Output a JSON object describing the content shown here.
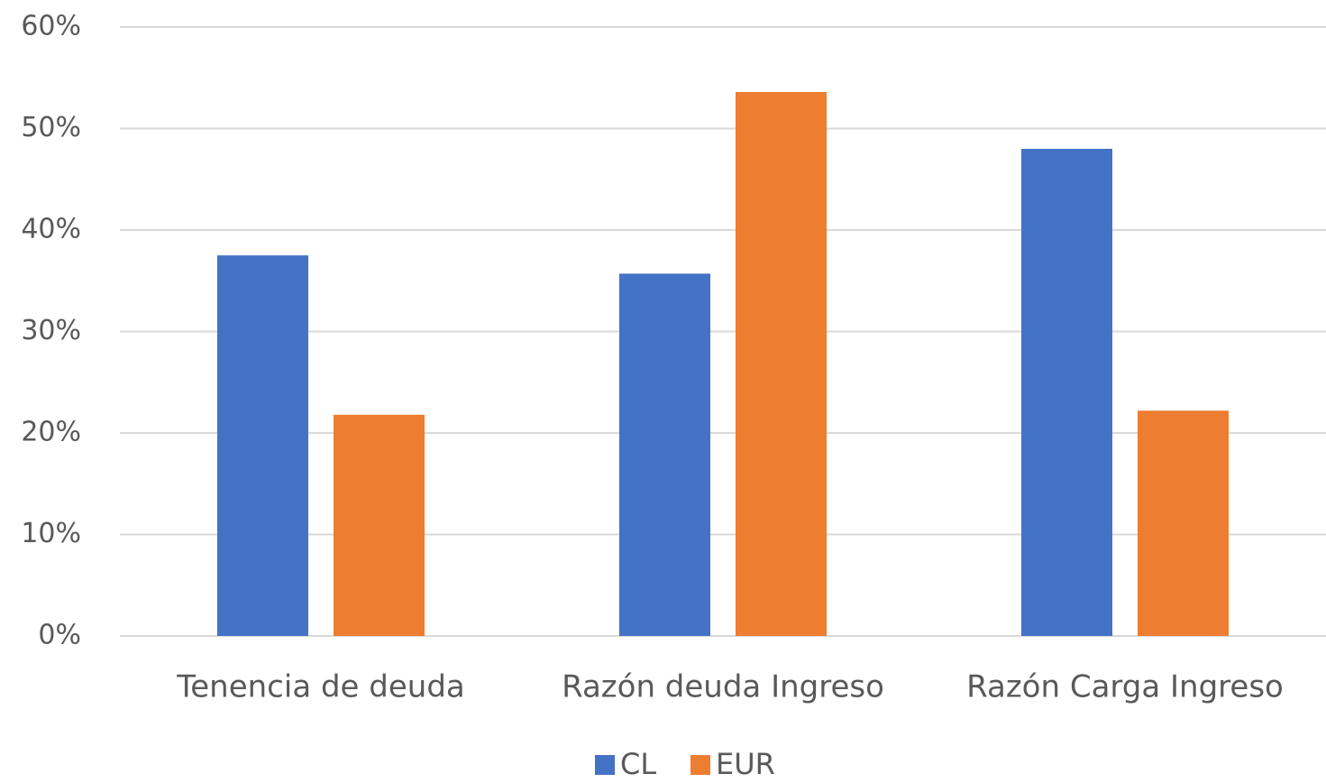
{
  "chart_data": {
    "type": "bar",
    "categories": [
      "Tenencia de deuda",
      "Razón deuda Ingreso",
      "Razón Carga Ingreso"
    ],
    "series": [
      {
        "name": "CL",
        "color": "#4472c4",
        "values": [
          37.5,
          35.7,
          48.0
        ]
      },
      {
        "name": "EUR",
        "color": "#ed7d31",
        "values": [
          21.8,
          53.6,
          22.2
        ]
      }
    ],
    "ylim": [
      0,
      60
    ],
    "yticks": [
      {
        "value": 0,
        "label": "0%"
      },
      {
        "value": 10,
        "label": "10%"
      },
      {
        "value": 20,
        "label": "20%"
      },
      {
        "value": 30,
        "label": "30%"
      },
      {
        "value": 40,
        "label": "40%"
      },
      {
        "value": 50,
        "label": "50%"
      },
      {
        "value": 60,
        "label": "60%"
      }
    ],
    "grid": true,
    "legend": "bottom"
  }
}
